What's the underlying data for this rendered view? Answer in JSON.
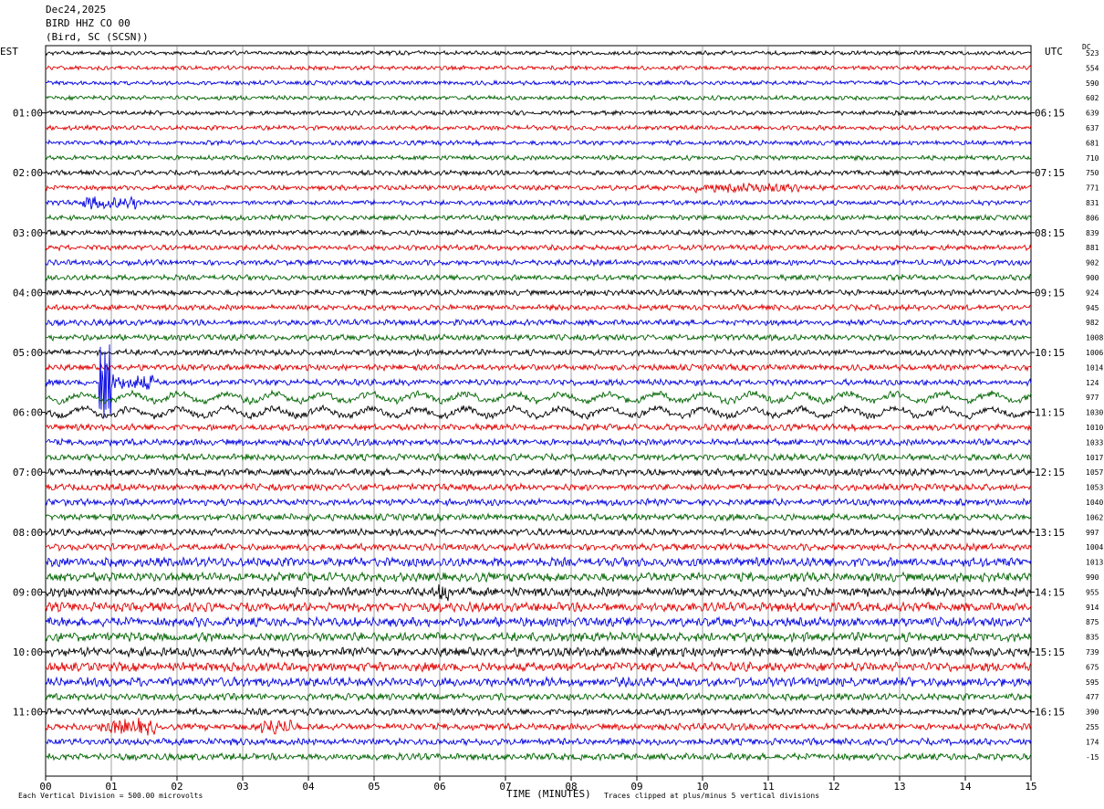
{
  "header": {
    "date": "Dec24,2025",
    "station": "BIRD HHZ CO 00",
    "location": "(Bird, SC (SCSN))"
  },
  "left_axis_title": "EST",
  "right_axis_title": "UTC",
  "dc_title": "DC",
  "footer": {
    "scale_note": "Each Vertical Division =  500.00 microvolts",
    "xlabel": "TIME (MINUTES)",
    "clip_note": "Traces clipped at plus/minus 5 vertical divisions"
  },
  "chart_data": {
    "type": "line",
    "title": "BIRD HHZ CO 00",
    "xlabel": "TIME (MINUTES)",
    "xlim": [
      0,
      15
    ],
    "x_ticks": [
      "00",
      "01",
      "02",
      "03",
      "04",
      "05",
      "06",
      "07",
      "08",
      "09",
      "10",
      "11",
      "12",
      "13",
      "14",
      "15"
    ],
    "est_labels": [
      "01:00",
      "02:00",
      "03:00",
      "04:00",
      "05:00",
      "06:00",
      "07:00",
      "08:00",
      "09:00",
      "10:00",
      "11:00"
    ],
    "utc_labels": [
      "06:15",
      "07:15",
      "08:15",
      "09:15",
      "10:15",
      "11:15",
      "12:15",
      "13:15",
      "14:15",
      "15:15",
      "16:15"
    ],
    "trace_colors": [
      "#000000",
      "#e00000",
      "#0000e0",
      "#006400"
    ],
    "grid": true,
    "dc_offsets": [
      "523",
      "554",
      "590",
      "602",
      "639",
      "637",
      "681",
      "710",
      "750",
      "771",
      "831",
      "806",
      "839",
      "881",
      "902",
      "900",
      "924",
      "945",
      "982",
      "1008",
      "1006",
      "1014",
      "124",
      "977",
      "1030",
      "1010",
      "1033",
      "1017",
      "1057",
      "1053",
      "1040",
      "1062",
      "997",
      "1004",
      "1013",
      "990",
      "955",
      "914",
      "875",
      "835",
      "739",
      "675",
      "595",
      "477",
      "390",
      "255",
      "174",
      "-15"
    ]
  }
}
